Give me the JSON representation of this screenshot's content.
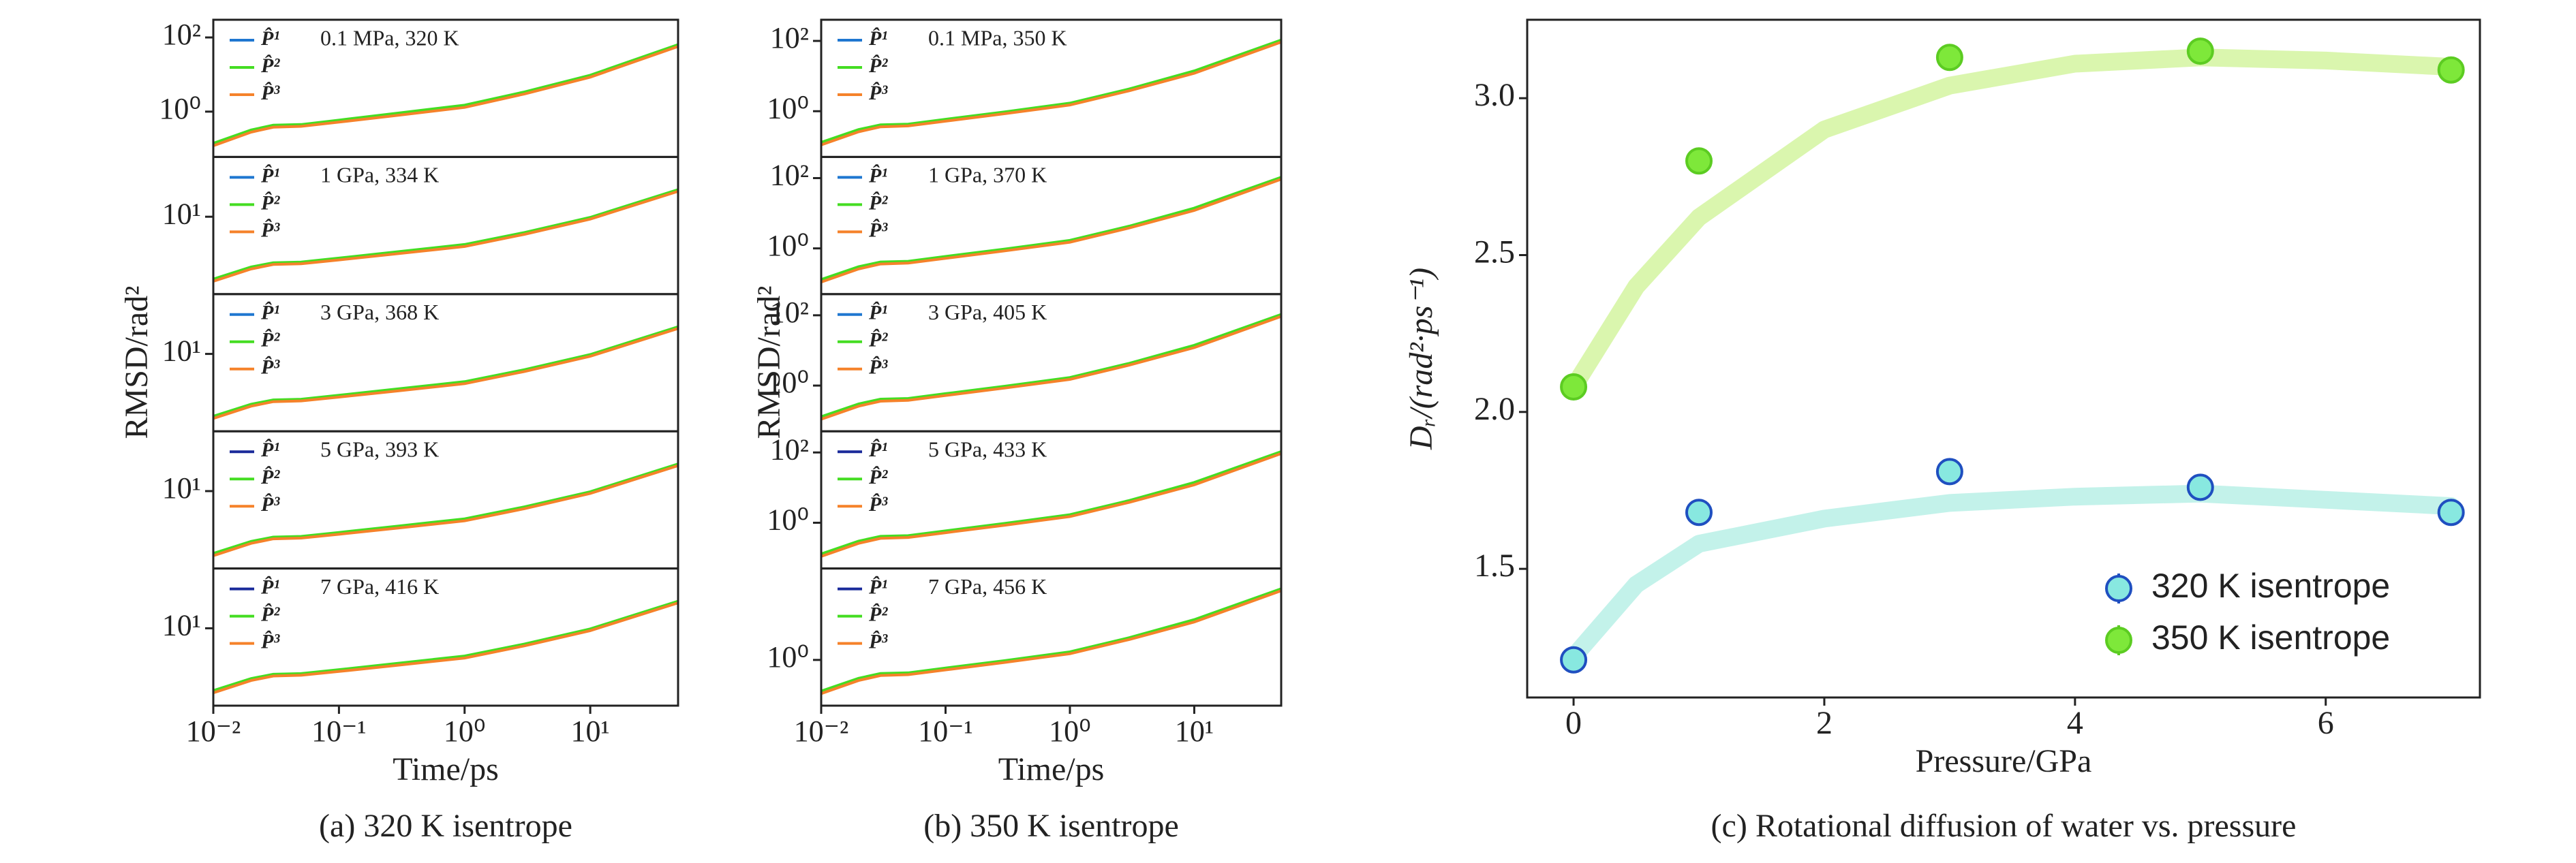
{
  "chart_data": [
    {
      "type": "line",
      "xscale": "log",
      "yscale": "log",
      "annotation": "0.1 MPa, 320 K",
      "x": [
        0.01,
        0.02,
        0.03,
        0.05,
        0.1,
        0.3,
        1,
        3,
        10,
        50
      ],
      "xlim": [
        0.01,
        50
      ],
      "ylim": [
        0.06,
        300
      ],
      "yticks": [
        {
          "value": 1,
          "label": "10⁰"
        },
        {
          "value": 100,
          "label": "10²"
        }
      ],
      "series": [
        {
          "name": "P̂¹",
          "color": "#1f77d0",
          "values": [
            0.13,
            0.3,
            0.4,
            0.42,
            0.55,
            0.85,
            1.4,
            3.2,
            9,
            60
          ]
        },
        {
          "name": "P̂²",
          "color": "#44dd22",
          "values": [
            0.14,
            0.32,
            0.43,
            0.45,
            0.59,
            0.92,
            1.5,
            3.4,
            9.6,
            64
          ]
        },
        {
          "name": "P̂³",
          "color": "#f5822a",
          "values": [
            0.12,
            0.28,
            0.38,
            0.4,
            0.52,
            0.8,
            1.3,
            3.0,
            8.5,
            57
          ]
        }
      ]
    },
    {
      "type": "line",
      "xscale": "log",
      "yscale": "log",
      "annotation": "1 GPa, 334 K",
      "x": [
        0.01,
        0.02,
        0.03,
        0.05,
        0.1,
        0.3,
        1,
        3,
        10,
        50
      ],
      "xlim": [
        0.01,
        50
      ],
      "ylim": [
        0.05,
        600
      ],
      "yticks": [
        {
          "value": 10,
          "label": "10¹"
        }
      ],
      "series": [
        {
          "name": "P̂¹",
          "color": "#1f77d0",
          "values": [
            0.13,
            0.3,
            0.4,
            0.42,
            0.55,
            0.85,
            1.4,
            3.2,
            9,
            60
          ]
        },
        {
          "name": "P̂²",
          "color": "#44dd22",
          "values": [
            0.14,
            0.32,
            0.43,
            0.45,
            0.59,
            0.92,
            1.5,
            3.4,
            9.6,
            64
          ]
        },
        {
          "name": "P̂³",
          "color": "#f5822a",
          "values": [
            0.12,
            0.28,
            0.38,
            0.4,
            0.52,
            0.8,
            1.3,
            3.0,
            8.5,
            57
          ]
        }
      ]
    },
    {
      "type": "line",
      "xscale": "log",
      "yscale": "log",
      "annotation": "3 GPa, 368 K",
      "ylabel": "RMSD/rad²",
      "x": [
        0.01,
        0.02,
        0.03,
        0.05,
        0.1,
        0.3,
        1,
        3,
        10,
        50
      ],
      "xlim": [
        0.01,
        50
      ],
      "ylim": [
        0.05,
        600
      ],
      "yticks": [
        {
          "value": 10,
          "label": "10¹"
        }
      ],
      "series": [
        {
          "name": "P̂¹",
          "color": "#1f77d0",
          "values": [
            0.13,
            0.3,
            0.4,
            0.42,
            0.55,
            0.85,
            1.4,
            3.2,
            9,
            60
          ]
        },
        {
          "name": "P̂²",
          "color": "#44dd22",
          "values": [
            0.14,
            0.32,
            0.43,
            0.45,
            0.59,
            0.92,
            1.5,
            3.4,
            9.6,
            64
          ]
        },
        {
          "name": "P̂³",
          "color": "#f5822a",
          "values": [
            0.12,
            0.28,
            0.38,
            0.4,
            0.52,
            0.8,
            1.3,
            3.0,
            8.5,
            57
          ]
        }
      ]
    },
    {
      "type": "line",
      "xscale": "log",
      "yscale": "log",
      "annotation": "5 GPa, 393 K",
      "x": [
        0.01,
        0.02,
        0.03,
        0.05,
        0.1,
        0.3,
        1,
        3,
        10,
        50
      ],
      "xlim": [
        0.01,
        50
      ],
      "ylim": [
        0.05,
        600
      ],
      "yticks": [
        {
          "value": 10,
          "label": "10¹"
        }
      ],
      "series": [
        {
          "name": "P̂¹",
          "color": "#1a2a9a",
          "values": [
            0.13,
            0.3,
            0.4,
            0.42,
            0.55,
            0.85,
            1.4,
            3.2,
            9,
            60
          ]
        },
        {
          "name": "P̂²",
          "color": "#44dd22",
          "values": [
            0.14,
            0.32,
            0.43,
            0.45,
            0.59,
            0.92,
            1.5,
            3.4,
            9.6,
            64
          ]
        },
        {
          "name": "P̂³",
          "color": "#f5822a",
          "values": [
            0.12,
            0.28,
            0.38,
            0.4,
            0.52,
            0.8,
            1.3,
            3.0,
            8.5,
            57
          ]
        }
      ]
    },
    {
      "type": "line",
      "xscale": "log",
      "yscale": "log",
      "annotation": "7 GPa, 416 K",
      "xlabel": "Time/ps",
      "caption": "(a) 320 K isentrope",
      "x": [
        0.01,
        0.02,
        0.03,
        0.05,
        0.1,
        0.3,
        1,
        3,
        10,
        50
      ],
      "xlim": [
        0.01,
        50
      ],
      "ylim": [
        0.05,
        600
      ],
      "yticks": [
        {
          "value": 10,
          "label": "10¹"
        }
      ],
      "xticks": [
        {
          "value": 0.01,
          "label": "10⁻²"
        },
        {
          "value": 0.1,
          "label": "10⁻¹"
        },
        {
          "value": 1,
          "label": "10⁰"
        },
        {
          "value": 10,
          "label": "10¹"
        }
      ],
      "series": [
        {
          "name": "P̂¹",
          "color": "#1a2a9a",
          "values": [
            0.13,
            0.3,
            0.4,
            0.42,
            0.55,
            0.85,
            1.4,
            3.2,
            9,
            60
          ]
        },
        {
          "name": "P̂²",
          "color": "#44dd22",
          "values": [
            0.14,
            0.32,
            0.43,
            0.45,
            0.59,
            0.92,
            1.5,
            3.4,
            9.6,
            64
          ]
        },
        {
          "name": "P̂³",
          "color": "#f5822a",
          "values": [
            0.12,
            0.28,
            0.38,
            0.4,
            0.52,
            0.8,
            1.3,
            3.0,
            8.5,
            57
          ]
        }
      ]
    },
    {
      "type": "line",
      "xscale": "log",
      "yscale": "log",
      "annotation": "0.1 MPa, 350 K",
      "x": [
        0.01,
        0.02,
        0.03,
        0.05,
        0.1,
        0.3,
        1,
        3,
        10,
        50
      ],
      "xlim": [
        0.01,
        50
      ],
      "ylim": [
        0.05,
        400
      ],
      "yticks": [
        {
          "value": 1,
          "label": "10⁰"
        },
        {
          "value": 100,
          "label": "10²"
        }
      ],
      "series": [
        {
          "name": "P̂¹",
          "color": "#1f77d0",
          "values": [
            0.12,
            0.28,
            0.38,
            0.4,
            0.55,
            0.9,
            1.6,
            4,
            13,
            100
          ]
        },
        {
          "name": "P̂²",
          "color": "#44dd22",
          "values": [
            0.13,
            0.3,
            0.41,
            0.43,
            0.59,
            0.96,
            1.7,
            4.3,
            14,
            106
          ]
        },
        {
          "name": "P̂³",
          "color": "#f5822a",
          "values": [
            0.11,
            0.26,
            0.36,
            0.38,
            0.52,
            0.85,
            1.5,
            3.8,
            12,
            93
          ]
        }
      ]
    },
    {
      "type": "line",
      "xscale": "log",
      "yscale": "log",
      "annotation": "1 GPa, 370 K",
      "x": [
        0.01,
        0.02,
        0.03,
        0.05,
        0.1,
        0.3,
        1,
        3,
        10,
        50
      ],
      "xlim": [
        0.01,
        50
      ],
      "ylim": [
        0.05,
        400
      ],
      "yticks": [
        {
          "value": 1,
          "label": "10⁰"
        },
        {
          "value": 100,
          "label": "10²"
        }
      ],
      "series": [
        {
          "name": "P̂¹",
          "color": "#1f77d0",
          "values": [
            0.12,
            0.28,
            0.38,
            0.4,
            0.55,
            0.9,
            1.6,
            4,
            13,
            100
          ]
        },
        {
          "name": "P̂²",
          "color": "#44dd22",
          "values": [
            0.13,
            0.3,
            0.41,
            0.43,
            0.59,
            0.96,
            1.7,
            4.3,
            14,
            106
          ]
        },
        {
          "name": "P̂³",
          "color": "#f5822a",
          "values": [
            0.11,
            0.26,
            0.36,
            0.38,
            0.52,
            0.85,
            1.5,
            3.8,
            12,
            93
          ]
        }
      ]
    },
    {
      "type": "line",
      "xscale": "log",
      "yscale": "log",
      "annotation": "3 GPa, 405 K",
      "ylabel": "RMSD/rad²",
      "x": [
        0.01,
        0.02,
        0.03,
        0.05,
        0.1,
        0.3,
        1,
        3,
        10,
        50
      ],
      "xlim": [
        0.01,
        50
      ],
      "ylim": [
        0.05,
        400
      ],
      "yticks": [
        {
          "value": 1,
          "label": "10⁰"
        },
        {
          "value": 100,
          "label": "10²"
        }
      ],
      "series": [
        {
          "name": "P̂¹",
          "color": "#1f77d0",
          "values": [
            0.12,
            0.28,
            0.38,
            0.4,
            0.55,
            0.9,
            1.6,
            4,
            13,
            100
          ]
        },
        {
          "name": "P̂²",
          "color": "#44dd22",
          "values": [
            0.13,
            0.3,
            0.41,
            0.43,
            0.59,
            0.96,
            1.7,
            4.3,
            14,
            106
          ]
        },
        {
          "name": "P̂³",
          "color": "#f5822a",
          "values": [
            0.11,
            0.26,
            0.36,
            0.38,
            0.52,
            0.85,
            1.5,
            3.8,
            12,
            93
          ]
        }
      ]
    },
    {
      "type": "line",
      "xscale": "log",
      "yscale": "log",
      "annotation": "5 GPa, 433 K",
      "x": [
        0.01,
        0.02,
        0.03,
        0.05,
        0.1,
        0.3,
        1,
        3,
        10,
        50
      ],
      "xlim": [
        0.01,
        50
      ],
      "ylim": [
        0.05,
        400
      ],
      "yticks": [
        {
          "value": 1,
          "label": "10⁰"
        },
        {
          "value": 100,
          "label": "10²"
        }
      ],
      "series": [
        {
          "name": "P̂¹",
          "color": "#1a2a9a",
          "values": [
            0.12,
            0.28,
            0.38,
            0.4,
            0.55,
            0.9,
            1.6,
            4,
            13,
            100
          ]
        },
        {
          "name": "P̂²",
          "color": "#44dd22",
          "values": [
            0.13,
            0.3,
            0.41,
            0.43,
            0.59,
            0.96,
            1.7,
            4.3,
            14,
            106
          ]
        },
        {
          "name": "P̂³",
          "color": "#f5822a",
          "values": [
            0.11,
            0.26,
            0.36,
            0.38,
            0.52,
            0.85,
            1.5,
            3.8,
            12,
            93
          ]
        }
      ]
    },
    {
      "type": "line",
      "xscale": "log",
      "yscale": "log",
      "annotation": "7 GPa, 456 K",
      "xlabel": "Time/ps",
      "caption": "(b) 350 K isentrope",
      "x": [
        0.01,
        0.02,
        0.03,
        0.05,
        0.1,
        0.3,
        1,
        3,
        10,
        50
      ],
      "xlim": [
        0.01,
        50
      ],
      "ylim": [
        0.05,
        400
      ],
      "yticks": [
        {
          "value": 1,
          "label": "10⁰"
        }
      ],
      "xticks": [
        {
          "value": 0.01,
          "label": "10⁻²"
        },
        {
          "value": 0.1,
          "label": "10⁻¹"
        },
        {
          "value": 1,
          "label": "10⁰"
        },
        {
          "value": 10,
          "label": "10¹"
        }
      ],
      "series": [
        {
          "name": "P̂¹",
          "color": "#1a2a9a",
          "values": [
            0.12,
            0.28,
            0.38,
            0.4,
            0.55,
            0.9,
            1.6,
            4,
            13,
            100
          ]
        },
        {
          "name": "P̂²",
          "color": "#44dd22",
          "values": [
            0.13,
            0.3,
            0.41,
            0.43,
            0.59,
            0.96,
            1.7,
            4.3,
            14,
            106
          ]
        },
        {
          "name": "P̂³",
          "color": "#f5822a",
          "values": [
            0.11,
            0.26,
            0.36,
            0.38,
            0.52,
            0.85,
            1.5,
            3.8,
            12,
            93
          ]
        }
      ]
    },
    {
      "type": "scatter",
      "xlabel": "Pressure/GPa",
      "ylabel": "Dᵣ/(rad²·ps⁻¹)",
      "caption": "(c) Rotational diffusion of water vs. pressure",
      "legend": "lower right",
      "x": [
        0,
        1,
        3,
        5,
        7
      ],
      "xlim": [
        -0.37,
        7.23
      ],
      "ylim": [
        1.09,
        3.25
      ],
      "xticks": [
        0,
        2,
        4,
        6
      ],
      "yticks": [
        1.5,
        {
          "value": 2,
          "label": "2.0"
        },
        2.5,
        {
          "value": 3,
          "label": "3.0"
        }
      ],
      "series": [
        {
          "name": "320 K isentrope",
          "color": "#88e8e0",
          "edge": "#1f4fc0",
          "values": [
            1.21,
            1.68,
            1.81,
            1.76,
            1.68
          ]
        },
        {
          "name": "350 K isentrope",
          "color": "#7ee83a",
          "edge": "#5ccc22",
          "values": [
            2.08,
            2.8,
            3.13,
            3.15,
            3.09
          ]
        }
      ],
      "fits": [
        {
          "color": "#b8f0e6",
          "x": [
            0,
            0.5,
            1,
            2,
            3,
            4,
            5,
            6,
            7
          ],
          "values": [
            1.22,
            1.45,
            1.58,
            1.66,
            1.71,
            1.73,
            1.74,
            1.72,
            1.7
          ]
        },
        {
          "color": "#d4f5a0",
          "x": [
            0,
            0.5,
            1,
            2,
            3,
            4,
            5,
            6,
            7
          ],
          "values": [
            2.08,
            2.4,
            2.62,
            2.9,
            3.04,
            3.11,
            3.13,
            3.12,
            3.1
          ]
        }
      ]
    }
  ]
}
